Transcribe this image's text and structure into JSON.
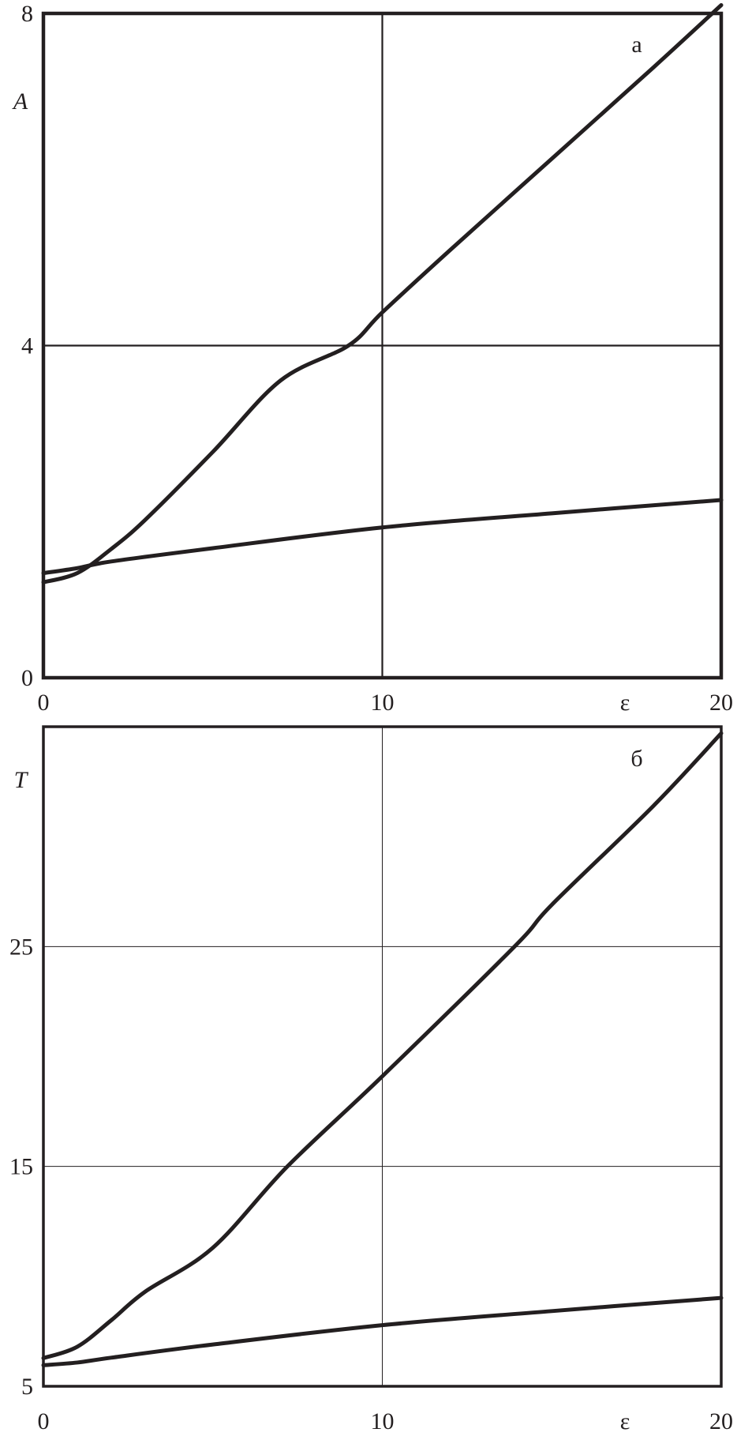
{
  "chart_data": [
    {
      "type": "line",
      "panel_label": "а",
      "xlabel": "ε",
      "ylabel": "A",
      "xlim": [
        0,
        20
      ],
      "ylim": [
        0,
        8
      ],
      "xticks": [
        "0",
        "10",
        "20"
      ],
      "yticks": [
        "0",
        "4",
        "8"
      ],
      "grid": true,
      "series": [
        {
          "x": [
            0,
            1,
            2,
            3,
            5,
            7,
            9,
            10,
            12,
            15,
            18,
            20
          ],
          "y": [
            1.15,
            1.26,
            1.55,
            1.9,
            2.72,
            3.58,
            4.0,
            4.4,
            5.15,
            6.25,
            7.35,
            8.1
          ]
        },
        {
          "x": [
            0,
            1,
            2,
            5,
            10,
            15,
            20
          ],
          "y": [
            1.26,
            1.32,
            1.4,
            1.56,
            1.81,
            1.98,
            2.14
          ]
        }
      ],
      "colors": {
        "line": "#231f20",
        "background": "#ffffff"
      }
    },
    {
      "type": "line",
      "panel_label": "б",
      "xlabel": "ε",
      "ylabel": "T",
      "xlim": [
        0,
        20
      ],
      "ylim": [
        5,
        35
      ],
      "xticks": [
        "0",
        "10",
        "20"
      ],
      "yticks": [
        "5",
        "15",
        "25"
      ],
      "grid": true,
      "series": [
        {
          "x": [
            0,
            1,
            2,
            3,
            5,
            7.2,
            10,
            13.9,
            15,
            18,
            20
          ],
          "y": [
            6.28,
            6.8,
            8.0,
            9.3,
            11.3,
            15.0,
            19.1,
            25.0,
            26.9,
            31.4,
            34.7
          ]
        },
        {
          "x": [
            0,
            1,
            2,
            5,
            10,
            15,
            20
          ],
          "y": [
            5.96,
            6.08,
            6.3,
            6.9,
            7.78,
            8.42,
            9.02
          ]
        }
      ],
      "colors": {
        "line": "#231f20",
        "background": "#ffffff"
      }
    }
  ]
}
